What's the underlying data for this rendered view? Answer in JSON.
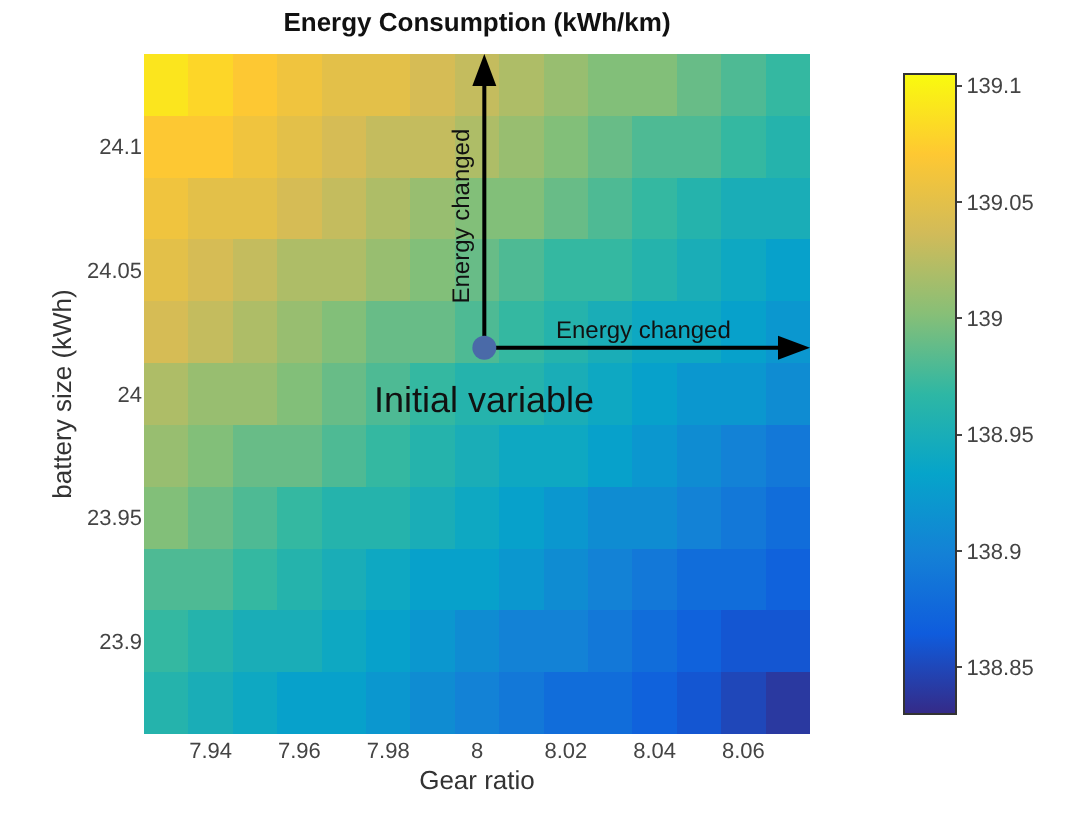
{
  "chart_data": {
    "type": "heatmap",
    "title": "Energy Consumption (kWh/km)",
    "xlabel": "Gear ratio",
    "ylabel": "battery size (kWh)",
    "categories": [
      null,
      "7.94",
      null,
      "7.96",
      null,
      "7.98",
      null,
      "8",
      null,
      "8.02",
      null,
      "8.04",
      null,
      "8.06",
      null
    ],
    "y_categories": [
      null,
      "24.1",
      null,
      "24.05",
      null,
      "24",
      null,
      "23.95",
      null,
      "23.9",
      null
    ],
    "cells": [
      [
        139.09,
        139.08,
        139.07,
        139.06,
        139.05,
        139.05,
        139.04,
        139.03,
        139.02,
        139.01,
        139.0,
        139.0,
        138.99,
        138.98,
        138.97
      ],
      [
        139.07,
        139.07,
        139.06,
        139.05,
        139.04,
        139.03,
        139.03,
        139.02,
        139.01,
        139.0,
        138.99,
        138.98,
        138.98,
        138.97,
        138.96
      ],
      [
        139.06,
        139.05,
        139.05,
        139.04,
        139.03,
        139.02,
        139.01,
        139.0,
        139.0,
        138.99,
        138.98,
        138.97,
        138.96,
        138.95,
        138.95
      ],
      [
        139.05,
        139.04,
        139.03,
        139.02,
        139.02,
        139.01,
        139.0,
        138.99,
        138.98,
        138.97,
        138.97,
        138.96,
        138.95,
        138.94,
        138.93
      ],
      [
        139.04,
        139.03,
        139.02,
        139.01,
        139.0,
        138.99,
        138.99,
        138.98,
        138.97,
        138.96,
        138.95,
        138.94,
        138.94,
        138.93,
        138.92
      ],
      [
        139.02,
        139.01,
        139.01,
        139.0,
        138.99,
        138.98,
        138.97,
        138.96,
        138.96,
        138.95,
        138.94,
        138.93,
        138.92,
        138.92,
        138.91
      ],
      [
        139.01,
        139.0,
        138.99,
        138.99,
        138.98,
        138.97,
        138.96,
        138.95,
        138.94,
        138.94,
        138.93,
        138.92,
        138.91,
        138.9,
        138.89
      ],
      [
        139.0,
        138.99,
        138.98,
        138.97,
        138.96,
        138.96,
        138.95,
        138.94,
        138.93,
        138.92,
        138.91,
        138.91,
        138.9,
        138.89,
        138.88
      ],
      [
        138.98,
        138.98,
        138.97,
        138.96,
        138.95,
        138.94,
        138.93,
        138.93,
        138.92,
        138.91,
        138.9,
        138.89,
        138.88,
        138.88,
        138.87
      ],
      [
        138.97,
        138.96,
        138.95,
        138.95,
        138.94,
        138.93,
        138.92,
        138.91,
        138.9,
        138.9,
        138.89,
        138.88,
        138.87,
        138.86,
        138.86
      ],
      [
        138.96,
        138.95,
        138.94,
        138.93,
        138.93,
        138.92,
        138.91,
        138.9,
        138.89,
        138.88,
        138.88,
        138.87,
        138.86,
        138.85,
        138.84
      ]
    ],
    "clim": [
      138.83,
      139.105
    ],
    "cticks": [
      138.85,
      138.9,
      138.95,
      139,
      139.05,
      139.1
    ],
    "annotations": [
      "Initial variable",
      "Energy changed",
      "Energy changed"
    ]
  }
}
